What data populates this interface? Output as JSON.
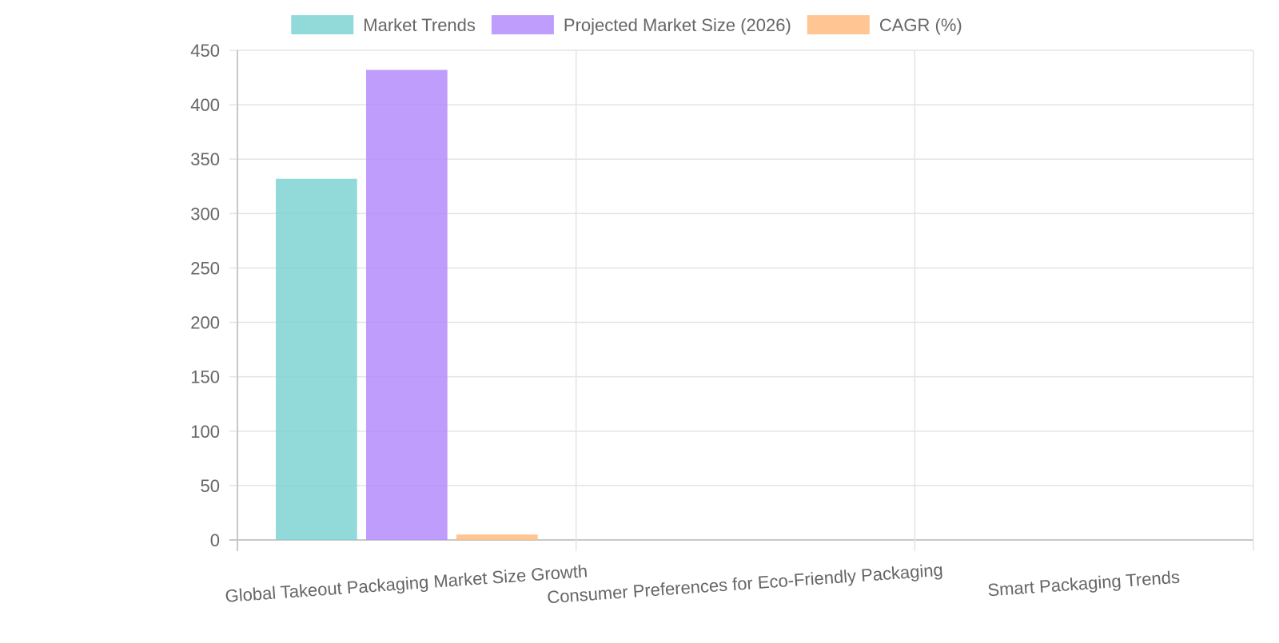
{
  "chart_data": {
    "type": "bar",
    "categories": [
      "Global Takeout Packaging Market Size Growth",
      "Consumer Preferences for Eco-Friendly Packaging",
      "Smart Packaging Trends"
    ],
    "series": [
      {
        "name": "Market Trends",
        "values": [
          332,
          null,
          null
        ],
        "color": "#7fd3d3"
      },
      {
        "name": "Projected Market Size (2026)",
        "values": [
          432,
          null,
          null
        ],
        "color": "#b48cfc"
      },
      {
        "name": "CAGR (%)",
        "values": [
          5,
          null,
          null
        ],
        "color": "#ffbb7f"
      }
    ],
    "ylim": [
      0,
      450
    ],
    "yticks": [
      "0",
      "50",
      "100",
      "150",
      "200",
      "250",
      "300",
      "350",
      "400",
      "450"
    ],
    "legend_position": "top-center",
    "grid": true
  }
}
